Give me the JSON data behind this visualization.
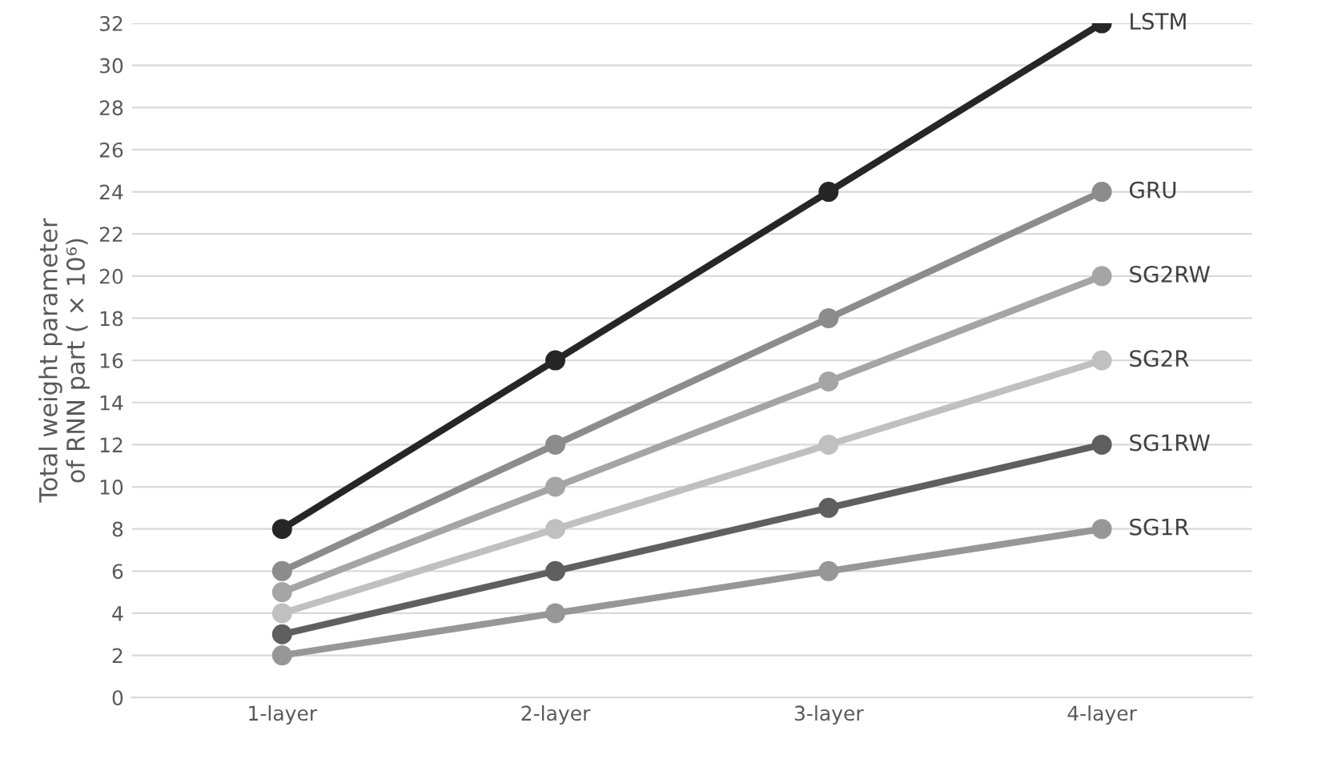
{
  "chart_data": {
    "type": "line",
    "ylabel": "Total weight parameter\nof RNN part ( × 10⁶)",
    "categories": [
      "1-layer",
      "2-layer",
      "3-layer",
      "4-layer"
    ],
    "series": [
      {
        "name": "LSTM",
        "color": "#262626",
        "values": [
          8,
          16,
          24,
          32
        ]
      },
      {
        "name": "GRU",
        "color": "#8c8c8c",
        "values": [
          6,
          12,
          18,
          24
        ]
      },
      {
        "name": "SG2RW",
        "color": "#a5a5a5",
        "values": [
          5,
          10,
          15,
          20
        ]
      },
      {
        "name": "SG2R",
        "color": "#c0c0c0",
        "values": [
          4,
          8,
          12,
          16
        ]
      },
      {
        "name": "SG1RW",
        "color": "#5f5f5f",
        "values": [
          3,
          6,
          9,
          12
        ]
      },
      {
        "name": "SG1R",
        "color": "#979797",
        "values": [
          2,
          4,
          6,
          8
        ]
      }
    ],
    "ylim": [
      0,
      32
    ],
    "yticks": [
      0,
      2,
      4,
      6,
      8,
      10,
      12,
      14,
      16,
      18,
      20,
      22,
      24,
      26,
      28,
      30,
      32
    ],
    "grid": "y",
    "legend": false,
    "marker": "circle",
    "line_style": "solid"
  }
}
